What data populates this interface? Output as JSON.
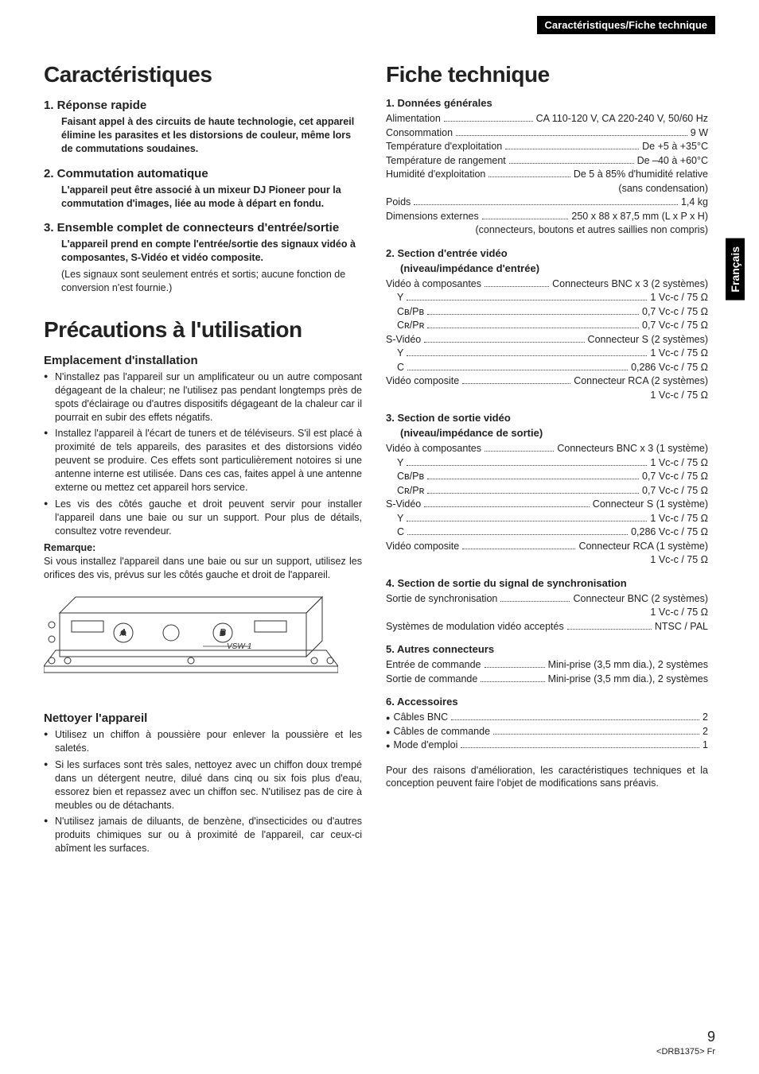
{
  "header": {
    "section_label": "Caractéristiques/Fiche technique"
  },
  "side_tab": "Français",
  "left": {
    "h_caracteristiques": "Caractéristiques",
    "features": [
      {
        "title": "1. Réponse rapide",
        "bold": "Faisant appel à des circuits de haute technologie, cet appareil élimine les parasites et les distorsions de couleur, même lors de commutations soudaines."
      },
      {
        "title": "2. Commutation automatique",
        "bold": "L'appareil peut être associé à un mixeur DJ Pioneer pour la commutation d'images, liée au mode à départ en fondu."
      },
      {
        "title": "3. Ensemble complet de connecteurs d'entrée/sortie",
        "bold": "L'appareil prend en compte l'entrée/sortie des signaux vidéo à composantes, S-Vidéo et vidéo composite.",
        "light": "(Les signaux sont seulement entrés et sortis; aucune fonction de conversion n'est fournie.)"
      }
    ],
    "h_precautions": "Précautions à l'utilisation",
    "h_emplacement": "Emplacement d'installation",
    "emplacement_bullets": [
      "N'installez pas l'appareil sur un amplificateur ou un autre composant dégageant de la chaleur; ne l'utilisez pas pendant longtemps près de spots d'éclairage ou d'autres dispositifs dégageant de la chaleur car il pourrait en subir des effets négatifs.",
      "Installez l'appareil à l'écart de tuners et de téléviseurs. S'il est placé à proximité de tels appareils, des parasites et des distorsions vidéo peuvent se produire. Ces effets sont particulièrement notoires si une antenne interne est utilisée. Dans ces cas, faites appel à une antenne externe ou mettez cet appareil hors service.",
      "Les vis des côtés gauche et droit peuvent servir pour installer l'appareil dans une baie ou sur un support. Pour plus de détails, consultez votre revendeur."
    ],
    "remarque_label": "Remarque:",
    "remarque_text": "Si vous installez l'appareil dans une baie ou sur un support, utilisez les orifices des vis, prévus sur les côtés gauche et droit de l'appareil.",
    "h_nettoyer": "Nettoyer l'appareil",
    "nettoyer_bullets": [
      "Utilisez un chiffon à poussière pour enlever la poussière et les saletés.",
      "Si les surfaces sont très sales, nettoyez avec un chiffon doux trempé dans un détergent neutre, dilué dans cinq ou six fois plus d'eau, essorez bien et repassez avec un chiffon sec. N'utilisez pas de cire à meubles ou de détachants.",
      "N'utilisez jamais de diluants, de benzène, d'insecticides ou d'autres produits chimiques sur ou à proximité de l'appareil, car ceux-ci abîment les surfaces."
    ],
    "device_label": "VSW-1"
  },
  "right": {
    "h_fiche": "Fiche technique",
    "sections": [
      {
        "title": "1. Données générales",
        "rows": [
          {
            "label": "Alimentation",
            "value": "CA 110-120 V, CA 220-240 V, 50/60 Hz"
          },
          {
            "label": "Consommation",
            "value": "9 W"
          },
          {
            "label": "Température d'exploitation",
            "value": "De +5 à +35°C"
          },
          {
            "label": "Température de rangement",
            "value": "De –40 à +60°C"
          },
          {
            "label": "Humidité d'exploitation",
            "value": "De 5 à 85% d'humidité relative"
          },
          {
            "right_only": true,
            "value": "(sans condensation)"
          },
          {
            "label": "Poids",
            "value": "1,4 kg"
          },
          {
            "label": "Dimensions externes",
            "value": "250 x 88 x 87,5 mm (L x P x H)"
          },
          {
            "right_only": true,
            "value": "(connecteurs, boutons et autres saillies non compris)"
          }
        ]
      },
      {
        "title": "2. Section d'entrée vidéo",
        "subtitle": "(niveau/impédance d'entrée)",
        "rows": [
          {
            "label": "Vidéo à composantes",
            "value": "Connecteurs BNC x 3 (2 systèmes)"
          },
          {
            "label": "Y",
            "indent": 1,
            "value": "1 Vc-c / 75 Ω"
          },
          {
            "label": "Cʙ/Pʙ",
            "indent": 1,
            "value": "0,7 Vc-c / 75 Ω"
          },
          {
            "label": "Cʀ/Pʀ",
            "indent": 1,
            "value": "0,7 Vc-c / 75 Ω"
          },
          {
            "label": "S-Vidéo",
            "value": "Connecteur S (2 systèmes)"
          },
          {
            "label": "Y",
            "indent": 1,
            "value": "1 Vc-c / 75 Ω"
          },
          {
            "label": "C",
            "indent": 1,
            "value": "0,286 Vc-c / 75 Ω"
          },
          {
            "label": "Vidéo composite",
            "value": "Connecteur RCA (2 systèmes)"
          },
          {
            "right_only": true,
            "value": "1 Vc-c / 75 Ω"
          }
        ]
      },
      {
        "title": "3. Section de sortie vidéo",
        "subtitle": "(niveau/impédance de sortie)",
        "rows": [
          {
            "label": "Vidéo à composantes",
            "value": "Connecteurs BNC x 3 (1 système)"
          },
          {
            "label": "Y",
            "indent": 1,
            "value": "1 Vc-c / 75 Ω"
          },
          {
            "label": "Cʙ/Pʙ",
            "indent": 1,
            "value": "0,7 Vc-c / 75 Ω"
          },
          {
            "label": "Cʀ/Pʀ",
            "indent": 1,
            "value": "0,7 Vc-c / 75 Ω"
          },
          {
            "label": "S-Vidéo",
            "value": "Connecteur S (1 système)"
          },
          {
            "label": "Y",
            "indent": 1,
            "value": "1 Vc-c / 75 Ω"
          },
          {
            "label": "C",
            "indent": 1,
            "value": "0,286 Vc-c / 75 Ω"
          },
          {
            "label": "Vidéo composite",
            "value": "Connecteur RCA (1 système)"
          },
          {
            "right_only": true,
            "value": "1 Vc-c / 75 Ω"
          }
        ]
      },
      {
        "title": "4. Section de sortie du signal de synchronisation",
        "rows": [
          {
            "label": "Sortie de synchronisation",
            "value": "Connecteur BNC (2 systèmes)"
          },
          {
            "right_only": true,
            "value": "1 Vc-c / 75 Ω"
          },
          {
            "label": "Systèmes de modulation vidéo acceptés",
            "value": "NTSC / PAL"
          }
        ]
      },
      {
        "title": "5. Autres connecteurs",
        "rows": [
          {
            "label": "Entrée de commande",
            "value": "Mini-prise (3,5 mm dia.), 2 systèmes"
          },
          {
            "label": "Sortie de commande",
            "value": "Mini-prise (3,5 mm dia.), 2 systèmes"
          }
        ]
      },
      {
        "title": "6. Accessoires",
        "bulleted": true,
        "rows": [
          {
            "label": "Câbles BNC",
            "value": "2"
          },
          {
            "label": "Câbles de commande",
            "value": "2"
          },
          {
            "label": "Mode d'emploi",
            "value": "1"
          }
        ]
      }
    ],
    "disclaimer": "Pour des raisons d'amélioration, les caractéristiques techniques et la conception peuvent faire l'objet de modifications sans préavis."
  },
  "footer": {
    "page_number": "9",
    "doc_code": "<DRB1375> Fr"
  }
}
